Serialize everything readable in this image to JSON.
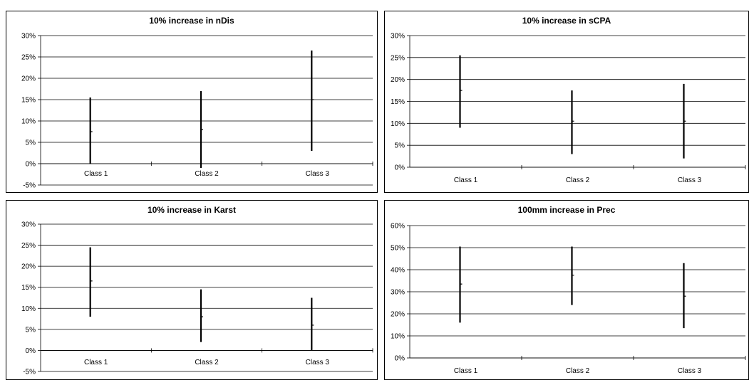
{
  "chart_data": [
    {
      "type": "errorbar",
      "title": "10% increase in nDis",
      "categories": [
        "Class 1",
        "Class 2",
        "Class 3"
      ],
      "series": [
        {
          "low": [
            0,
            -1,
            3
          ],
          "mid": [
            7.5,
            8,
            15
          ],
          "high": [
            15.5,
            17,
            26.5
          ]
        }
      ],
      "ylim": [
        -5,
        30
      ],
      "yticks": [
        "-5%",
        "0%",
        "5%",
        "10%",
        "15%",
        "20%",
        "25%",
        "30%"
      ],
      "grid": true
    },
    {
      "type": "errorbar",
      "title": "10% increase in sCPA",
      "categories": [
        "Class 1",
        "Class 2",
        "Class 3"
      ],
      "series": [
        {
          "low": [
            9,
            3,
            2
          ],
          "mid": [
            17.5,
            10.5,
            10.5
          ],
          "high": [
            25.5,
            17.5,
            19
          ]
        }
      ],
      "ylim": [
        0,
        30
      ],
      "yticks": [
        "0%",
        "5%",
        "10%",
        "15%",
        "20%",
        "25%",
        "30%"
      ],
      "grid": true
    },
    {
      "type": "errorbar",
      "title": "10% increase in Karst",
      "categories": [
        "Class 1",
        "Class 2",
        "Class 3"
      ],
      "series": [
        {
          "low": [
            8,
            2,
            0
          ],
          "mid": [
            16.5,
            8,
            6
          ],
          "high": [
            24.5,
            14.5,
            12.5
          ]
        }
      ],
      "ylim": [
        -5,
        30
      ],
      "yticks": [
        "-5%",
        "0%",
        "5%",
        "10%",
        "15%",
        "20%",
        "25%",
        "30%"
      ],
      "grid": true
    },
    {
      "type": "errorbar",
      "title": "100mm increase in Prec",
      "categories": [
        "Class 1",
        "Class 2",
        "Class 3"
      ],
      "series": [
        {
          "low": [
            16,
            24,
            13.5
          ],
          "mid": [
            33.5,
            37.5,
            28
          ],
          "high": [
            50.5,
            50.5,
            43
          ]
        }
      ],
      "ylim": [
        0,
        60
      ],
      "yticks": [
        "0%",
        "10%",
        "20%",
        "30%",
        "40%",
        "50%",
        "60%"
      ],
      "grid": true
    }
  ]
}
